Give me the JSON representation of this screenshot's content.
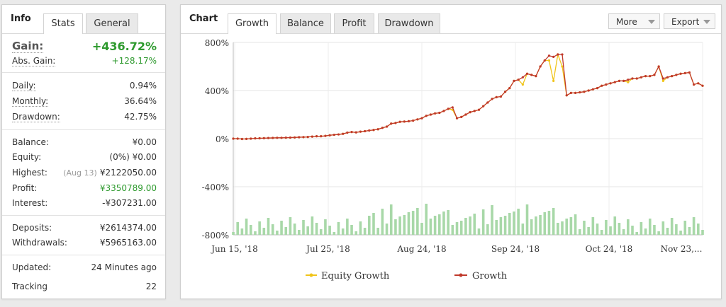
{
  "info_panel": {
    "title": "Info",
    "tabs": [
      "Stats",
      "General"
    ],
    "gain": {
      "label": "Gain:",
      "value": "+436.72%"
    },
    "abs_gain": {
      "label": "Abs. Gain:",
      "value": "+128.17%"
    },
    "daily": {
      "label": "Daily:",
      "value": "0.94%"
    },
    "monthly": {
      "label": "Monthly:",
      "value": "36.64%"
    },
    "drawdown": {
      "label": "Drawdown:",
      "value": "42.75%"
    },
    "balance": {
      "label": "Balance:",
      "value": "¥0.00"
    },
    "equity": {
      "label": "Equity:",
      "value": "(0%) ¥0.00"
    },
    "highest": {
      "label": "Highest:",
      "note": "(Aug 13)",
      "value": "¥2122050.00"
    },
    "profit": {
      "label": "Profit:",
      "value": "¥3350789.00"
    },
    "interest": {
      "label": "Interest:",
      "value": "-¥307231.00"
    },
    "deposits": {
      "label": "Deposits:",
      "value": "¥2614374.00"
    },
    "withdrawals": {
      "label": "Withdrawals:",
      "value": "¥5965163.00"
    },
    "updated": {
      "label": "Updated:",
      "value": "24 Minutes ago"
    },
    "tracking": {
      "label": "Tracking",
      "value": "22"
    }
  },
  "chart_panel": {
    "title": "Chart",
    "tabs": [
      "Growth",
      "Balance",
      "Profit",
      "Drawdown"
    ],
    "more_label": "More",
    "export_label": "Export"
  },
  "colors": {
    "growth": "#c0392b",
    "equity": "#f0c419",
    "volume": "#a8d8a8",
    "positive": "#2e9a2e"
  },
  "chart_data": {
    "type": "line",
    "y_ticks": [
      "800%",
      "400%",
      "0%",
      "-400%",
      "-800%"
    ],
    "y_tick_values": [
      800,
      400,
      0,
      -400,
      -800
    ],
    "ylim": [
      -800,
      800
    ],
    "x_ticks": [
      "Jun 15, '18",
      "Jul 25, '18",
      "Aug 24, '18",
      "Sep 24, '18",
      "Oct 24, '18",
      "Nov 23,..."
    ],
    "grid": true,
    "legend_position": "bottom",
    "series": [
      {
        "name": "Growth",
        "values": [
          0,
          0,
          -3,
          -2,
          0,
          2,
          3,
          4,
          5,
          6,
          7,
          7,
          8,
          9,
          10,
          12,
          13,
          14,
          17,
          20,
          20,
          23,
          28,
          32,
          35,
          40,
          50,
          55,
          52,
          58,
          62,
          68,
          72,
          78,
          90,
          100,
          125,
          130,
          140,
          142,
          145,
          150,
          160,
          170,
          190,
          200,
          210,
          215,
          230,
          248,
          260,
          170,
          180,
          200,
          220,
          230,
          240,
          270,
          300,
          330,
          345,
          350,
          390,
          420,
          480,
          490,
          510,
          540,
          530,
          520,
          600,
          650,
          690,
          680,
          700,
          700,
          360,
          380,
          380,
          385,
          390,
          400,
          410,
          420,
          440,
          450,
          460,
          470,
          480,
          480,
          490,
          500,
          500,
          510,
          520,
          520,
          530,
          600,
          500,
          510,
          520,
          530,
          540,
          545,
          550,
          450,
          460,
          440
        ]
      },
      {
        "name": "Equity Growth",
        "values": [
          0,
          0,
          -3,
          -2,
          0,
          2,
          3,
          4,
          5,
          6,
          7,
          7,
          8,
          9,
          10,
          12,
          13,
          14,
          17,
          20,
          20,
          23,
          28,
          32,
          35,
          40,
          50,
          55,
          52,
          58,
          62,
          68,
          72,
          78,
          90,
          100,
          125,
          130,
          140,
          142,
          145,
          150,
          160,
          170,
          190,
          200,
          210,
          215,
          230,
          248,
          240,
          170,
          180,
          200,
          220,
          230,
          240,
          270,
          300,
          330,
          345,
          350,
          390,
          420,
          480,
          490,
          450,
          540,
          530,
          520,
          600,
          650,
          650,
          480,
          700,
          600,
          360,
          380,
          380,
          385,
          390,
          400,
          410,
          420,
          440,
          450,
          460,
          470,
          480,
          480,
          470,
          500,
          500,
          510,
          520,
          520,
          530,
          600,
          480,
          510,
          520,
          530,
          540,
          545,
          550,
          450,
          460,
          440
        ]
      }
    ]
  }
}
